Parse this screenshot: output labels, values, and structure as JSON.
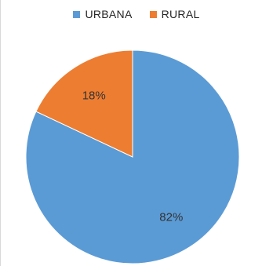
{
  "chart_data": {
    "type": "pie",
    "categories": [
      "URBANA",
      "RURAL"
    ],
    "values": [
      82,
      18
    ],
    "labels": [
      "82%",
      "18%"
    ],
    "colors": [
      "#5b9bd5",
      "#ed7d31"
    ],
    "legend": "top",
    "start_angle_deg": 0,
    "direction": "clockwise"
  }
}
